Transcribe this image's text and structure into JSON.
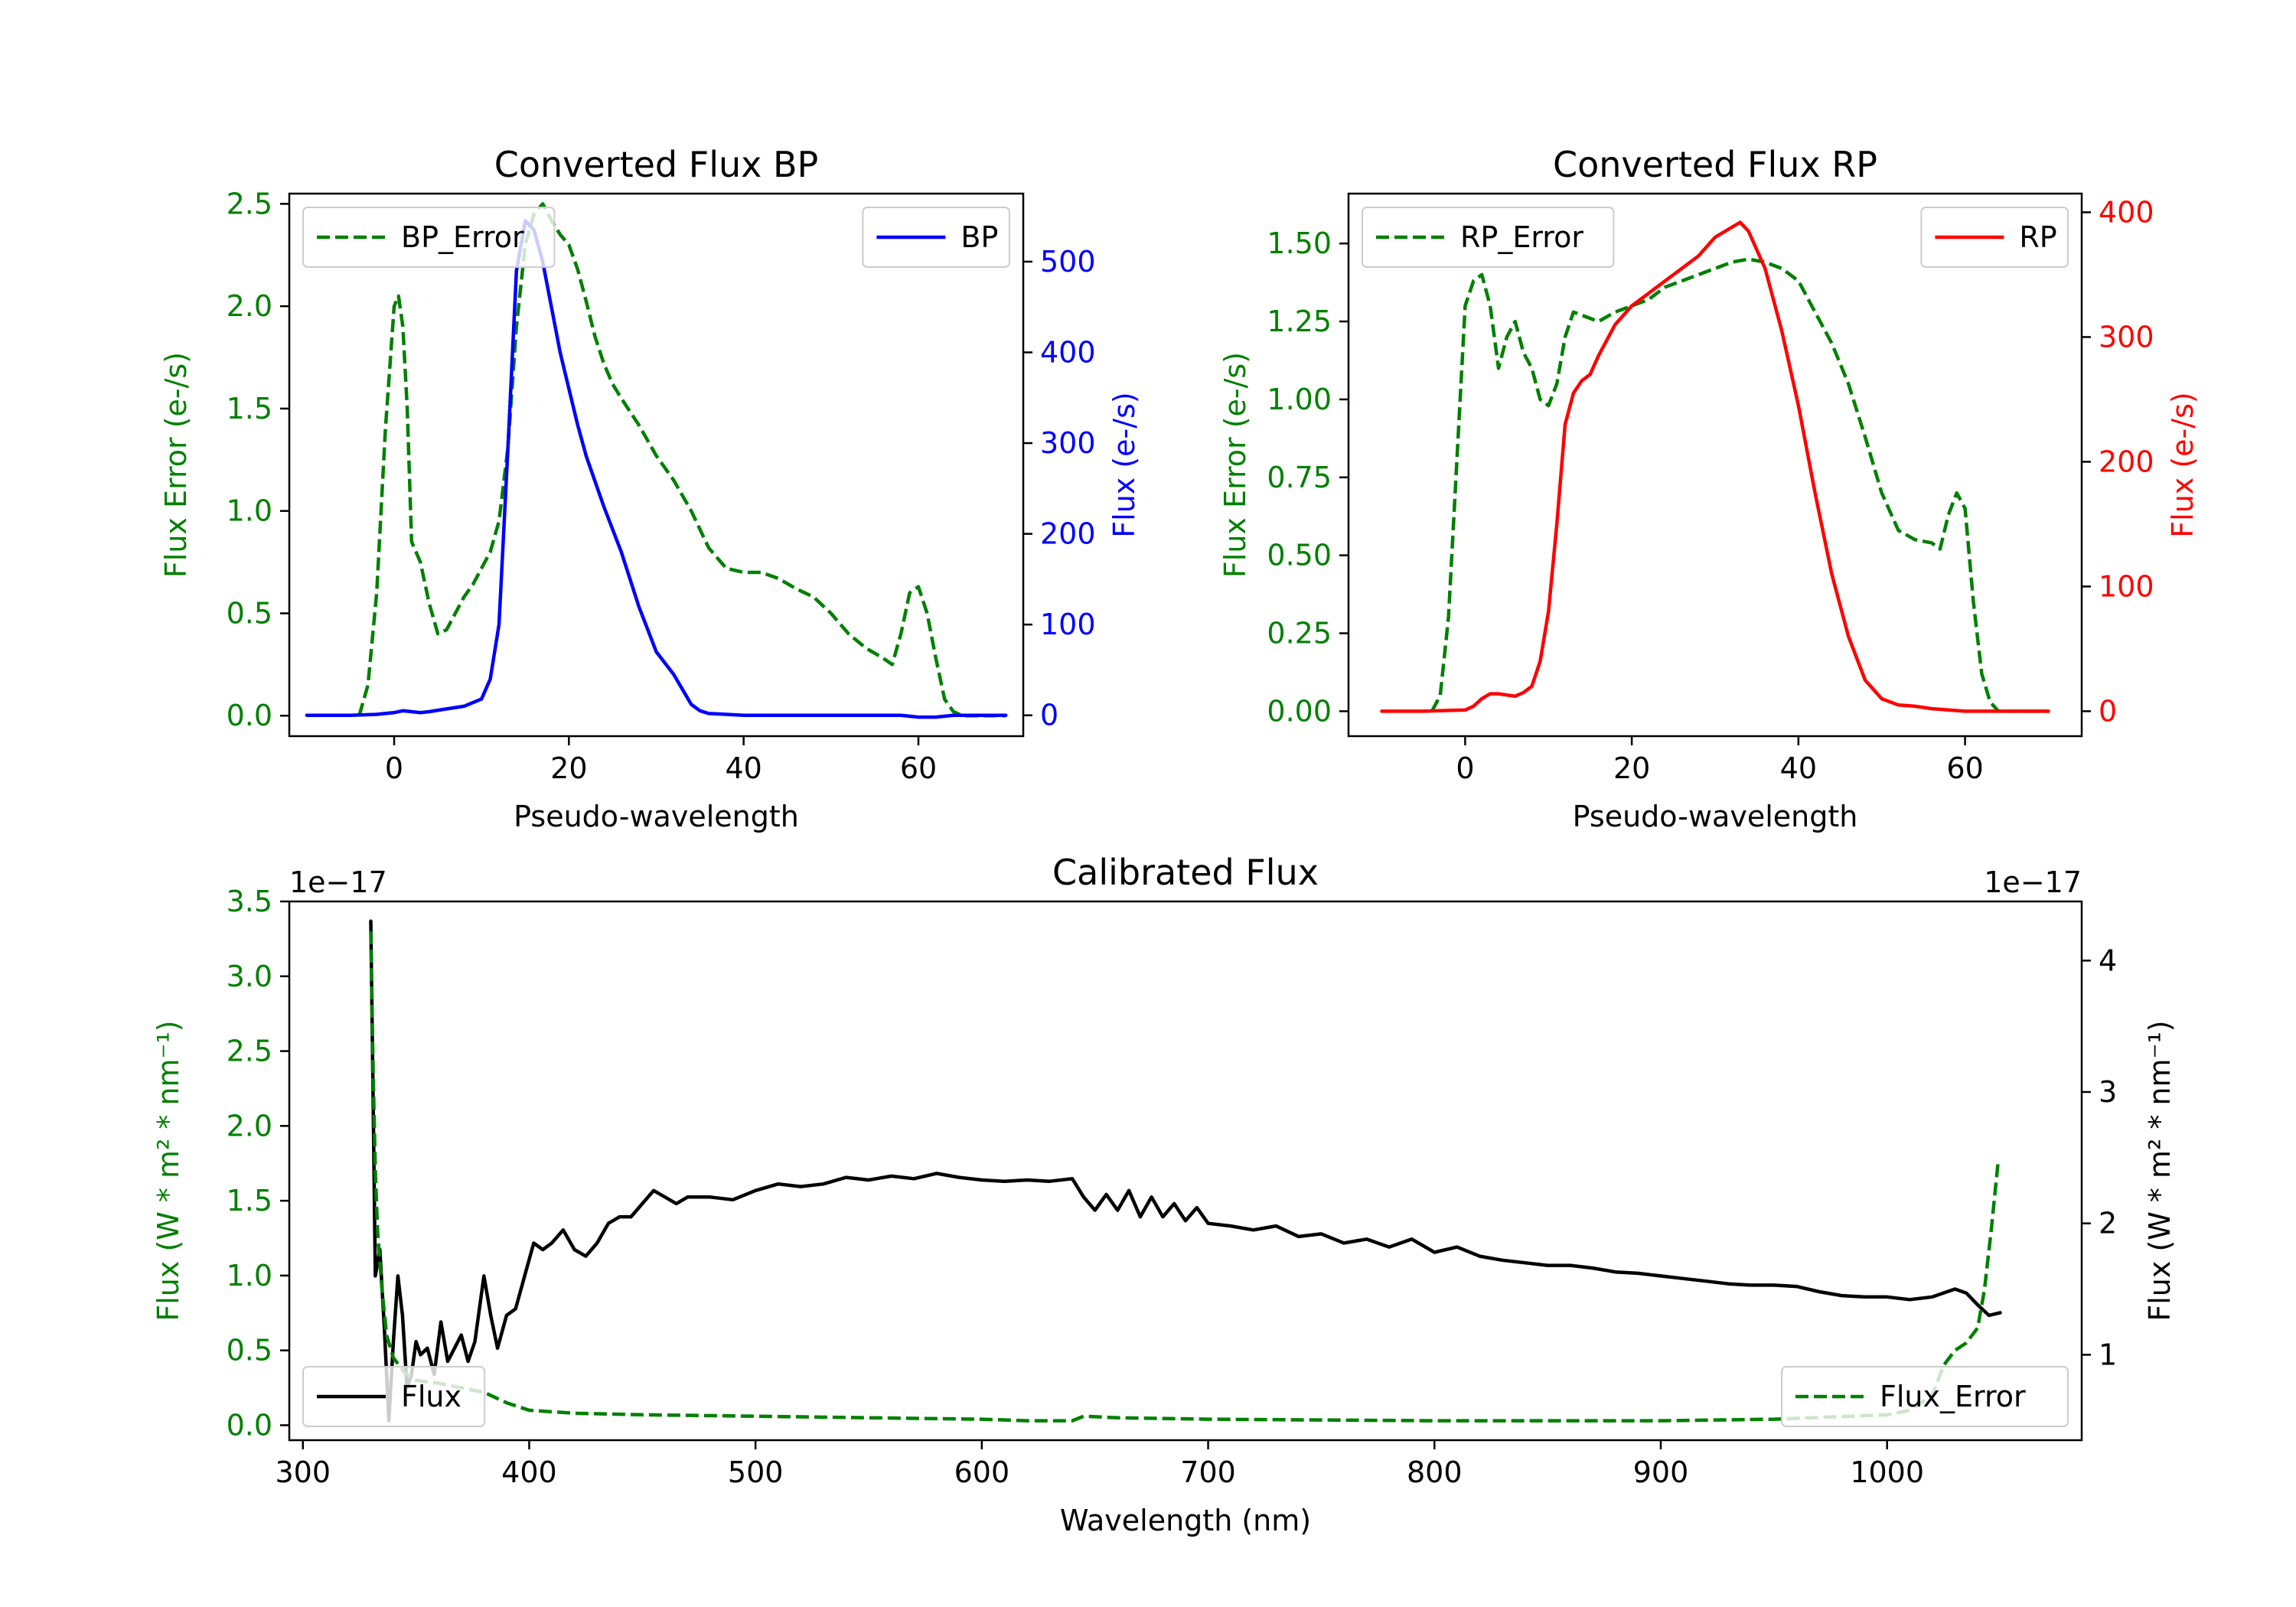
{
  "colors": {
    "error": "#008000",
    "bp": "#0000ff",
    "rp": "#ff0000",
    "flux": "#000000",
    "axis": "#000000",
    "legend_edge": "#cccccc"
  },
  "chart_data": [
    {
      "id": "bp",
      "type": "line",
      "title": "Converted Flux BP",
      "xlabel": "Pseudo-wavelength",
      "ylabel_left": "Flux Error (e-/s)",
      "ylabel_right": "Flux (e-/s)",
      "xlim": [
        -12,
        72
      ],
      "ylim_left": [
        -0.1,
        2.55
      ],
      "ylim_right": [
        -23,
        575
      ],
      "xticks": [
        0,
        20,
        40,
        60
      ],
      "yticks_left": [
        0.0,
        0.5,
        1.0,
        1.5,
        2.0,
        2.5
      ],
      "yticks_left_labels": [
        "0.0",
        "0.5",
        "1.0",
        "1.5",
        "2.0",
        "2.5"
      ],
      "yticks_right": [
        0,
        100,
        200,
        300,
        400,
        500
      ],
      "yticks_right_labels": [
        "0",
        "100",
        "200",
        "300",
        "400",
        "500"
      ],
      "legend_left": {
        "label": "BP_Error",
        "position": "upper left"
      },
      "legend_right": {
        "label": "BP",
        "position": "upper right"
      },
      "series": [
        {
          "name": "BP_Error",
          "axis": "left",
          "style": "dashed",
          "color_key": "error",
          "x": [
            -4,
            -3,
            -2,
            -1,
            0,
            0.5,
            1,
            1.5,
            2,
            3,
            4,
            5,
            6,
            7,
            8,
            9,
            10,
            11,
            12,
            13,
            14,
            15,
            16,
            17,
            18,
            19,
            20,
            21,
            22,
            23,
            24,
            25,
            26,
            28,
            30,
            32,
            34,
            36,
            38,
            40,
            42,
            44,
            46,
            48,
            50,
            52,
            54,
            56,
            57,
            58,
            59,
            60,
            61,
            62,
            63,
            64,
            65,
            66,
            68,
            70
          ],
          "y": [
            0.0,
            0.15,
            0.6,
            1.4,
            2.0,
            2.05,
            1.9,
            1.5,
            0.85,
            0.75,
            0.55,
            0.4,
            0.42,
            0.5,
            0.58,
            0.64,
            0.72,
            0.8,
            0.95,
            1.3,
            1.9,
            2.3,
            2.45,
            2.5,
            2.42,
            2.35,
            2.3,
            2.18,
            2.02,
            1.85,
            1.72,
            1.62,
            1.55,
            1.42,
            1.27,
            1.15,
            1.0,
            0.82,
            0.72,
            0.7,
            0.7,
            0.67,
            0.62,
            0.58,
            0.5,
            0.4,
            0.33,
            0.28,
            0.25,
            0.4,
            0.6,
            0.63,
            0.5,
            0.28,
            0.08,
            0.02,
            0.0,
            0.0,
            0.0,
            0.0
          ]
        },
        {
          "name": "BP",
          "axis": "right",
          "style": "solid",
          "color_key": "bp",
          "x": [
            -10,
            -5,
            -2,
            0,
            1,
            2,
            3,
            4,
            6,
            8,
            10,
            11,
            12,
            13,
            14,
            15,
            16,
            17,
            18,
            19,
            20,
            21,
            22,
            24,
            26,
            28,
            30,
            32,
            34,
            35,
            36,
            38,
            40,
            42,
            44,
            46,
            48,
            50,
            52,
            54,
            56,
            58,
            60,
            62,
            64,
            66,
            68,
            70
          ],
          "y": [
            0,
            0,
            1,
            3,
            5,
            4,
            3,
            4,
            7,
            10,
            18,
            40,
            100,
            290,
            490,
            545,
            535,
            500,
            450,
            400,
            360,
            320,
            285,
            230,
            180,
            120,
            70,
            45,
            12,
            5,
            2,
            1,
            0,
            0,
            0,
            0,
            0,
            0,
            0,
            0,
            0,
            0,
            -2,
            -2,
            0,
            0,
            0,
            0
          ]
        }
      ]
    },
    {
      "id": "rp",
      "type": "line",
      "title": "Converted Flux RP",
      "xlabel": "Pseudo-wavelength",
      "ylabel_left": "Flux Error (e-/s)",
      "ylabel_right": "Flux (e-/s)",
      "xlim": [
        -14,
        74
      ],
      "ylim_left": [
        -0.08,
        1.66
      ],
      "ylim_right": [
        -20,
        415
      ],
      "xticks": [
        0,
        20,
        40,
        60
      ],
      "yticks_left": [
        0.0,
        0.25,
        0.5,
        0.75,
        1.0,
        1.25,
        1.5
      ],
      "yticks_left_labels": [
        "0.00",
        "0.25",
        "0.50",
        "0.75",
        "1.00",
        "1.25",
        "1.50"
      ],
      "yticks_right": [
        0,
        100,
        200,
        300,
        400
      ],
      "yticks_right_labels": [
        "0",
        "100",
        "200",
        "300",
        "400"
      ],
      "legend_left": {
        "label": "RP_Error",
        "position": "upper left"
      },
      "legend_right": {
        "label": "RP",
        "position": "upper right"
      },
      "series": [
        {
          "name": "RP_Error",
          "axis": "left",
          "style": "dashed",
          "color_key": "error",
          "x": [
            -4,
            -3,
            -2,
            -1,
            0,
            1,
            2,
            3,
            4,
            5,
            6,
            7,
            8,
            9,
            10,
            11,
            12,
            13,
            14,
            16,
            18,
            20,
            22,
            24,
            26,
            28,
            30,
            32,
            34,
            36,
            38,
            40,
            42,
            44,
            46,
            48,
            50,
            52,
            54,
            56,
            57,
            58,
            59,
            60,
            61,
            62,
            63,
            64,
            66,
            68,
            70
          ],
          "y": [
            0.0,
            0.05,
            0.3,
            0.8,
            1.3,
            1.38,
            1.4,
            1.3,
            1.1,
            1.2,
            1.25,
            1.15,
            1.1,
            1.0,
            0.98,
            1.05,
            1.2,
            1.28,
            1.27,
            1.25,
            1.28,
            1.3,
            1.32,
            1.36,
            1.38,
            1.4,
            1.42,
            1.44,
            1.45,
            1.44,
            1.42,
            1.38,
            1.28,
            1.18,
            1.05,
            0.88,
            0.7,
            0.58,
            0.55,
            0.54,
            0.52,
            0.63,
            0.7,
            0.65,
            0.35,
            0.12,
            0.03,
            0.0,
            0.0,
            0.0,
            0.0
          ]
        },
        {
          "name": "RP",
          "axis": "right",
          "style": "solid",
          "color_key": "rp",
          "x": [
            -10,
            -5,
            0,
            1,
            2,
            3,
            4,
            6,
            7,
            8,
            9,
            10,
            11,
            12,
            13,
            14,
            15,
            16,
            18,
            20,
            22,
            24,
            26,
            28,
            30,
            32,
            33,
            34,
            36,
            38,
            40,
            42,
            44,
            46,
            48,
            50,
            52,
            54,
            56,
            58,
            60,
            62,
            64,
            66,
            68,
            70
          ],
          "y": [
            0,
            0,
            1,
            4,
            10,
            14,
            14,
            12,
            15,
            20,
            40,
            80,
            150,
            230,
            255,
            265,
            270,
            285,
            310,
            325,
            335,
            345,
            355,
            365,
            380,
            388,
            392,
            385,
            355,
            305,
            245,
            175,
            110,
            60,
            25,
            10,
            5,
            4,
            2,
            1,
            0,
            0,
            0,
            0,
            0,
            0
          ]
        }
      ]
    },
    {
      "id": "calibrated",
      "type": "line",
      "title": "Calibrated Flux",
      "xlabel": "Wavelength (nm)",
      "ylabel_left": "Flux (W * m² * nm⁻¹)",
      "ylabel_right": "Flux (W * m² * nm⁻¹)",
      "offset_left": "1e−17",
      "offset_right": "1e−17",
      "xlim": [
        294,
        1086
      ],
      "ylim_left": [
        -0.1,
        3.5
      ],
      "ylim_right": [
        0.35,
        4.45
      ],
      "xticks": [
        300,
        400,
        500,
        600,
        700,
        800,
        900,
        1000
      ],
      "yticks_left": [
        0.0,
        0.5,
        1.0,
        1.5,
        2.0,
        2.5,
        3.0,
        3.5
      ],
      "yticks_left_labels": [
        "0.0",
        "0.5",
        "1.0",
        "1.5",
        "2.0",
        "2.5",
        "3.0",
        "3.5"
      ],
      "yticks_right": [
        1,
        2,
        3,
        4
      ],
      "yticks_right_labels": [
        "1",
        "2",
        "3",
        "4"
      ],
      "legend_left": {
        "label": "Flux",
        "position": "lower left"
      },
      "legend_right": {
        "label": "Flux_Error",
        "position": "lower right"
      },
      "series": [
        {
          "name": "Flux",
          "axis": "right",
          "style": "solid",
          "color_key": "flux",
          "x": [
            330,
            331,
            332,
            334,
            336,
            338,
            340,
            342,
            344,
            346,
            348,
            350,
            352,
            355,
            358,
            361,
            364,
            367,
            370,
            373,
            376,
            380,
            383,
            386,
            390,
            394,
            398,
            402,
            406,
            410,
            415,
            420,
            425,
            430,
            435,
            440,
            445,
            450,
            455,
            460,
            465,
            470,
            475,
            480,
            490,
            500,
            510,
            520,
            530,
            540,
            550,
            560,
            570,
            580,
            590,
            600,
            610,
            620,
            630,
            640,
            645,
            650,
            655,
            660,
            665,
            670,
            675,
            680,
            685,
            690,
            695,
            700,
            710,
            720,
            730,
            740,
            750,
            760,
            770,
            780,
            790,
            800,
            810,
            820,
            830,
            840,
            850,
            860,
            870,
            880,
            890,
            900,
            910,
            920,
            930,
            940,
            950,
            960,
            970,
            980,
            990,
            1000,
            1010,
            1020,
            1030,
            1035,
            1040,
            1045,
            1050
          ],
          "y": [
            4.3,
            3.0,
            1.6,
            1.8,
            1.2,
            0.5,
            1.1,
            1.6,
            1.3,
            0.75,
            0.85,
            1.1,
            1.0,
            1.05,
            0.85,
            1.25,
            0.95,
            1.05,
            1.15,
            0.95,
            1.1,
            1.6,
            1.3,
            1.05,
            1.3,
            1.35,
            1.6,
            1.85,
            1.8,
            1.85,
            1.95,
            1.8,
            1.75,
            1.85,
            2.0,
            2.05,
            2.05,
            2.15,
            2.25,
            2.2,
            2.15,
            2.2,
            2.2,
            2.2,
            2.18,
            2.25,
            2.3,
            2.28,
            2.3,
            2.35,
            2.33,
            2.36,
            2.34,
            2.38,
            2.35,
            2.33,
            2.32,
            2.33,
            2.32,
            2.34,
            2.2,
            2.1,
            2.22,
            2.1,
            2.25,
            2.05,
            2.2,
            2.05,
            2.15,
            2.02,
            2.12,
            2.0,
            1.98,
            1.95,
            1.98,
            1.9,
            1.92,
            1.85,
            1.88,
            1.82,
            1.88,
            1.78,
            1.82,
            1.75,
            1.72,
            1.7,
            1.68,
            1.68,
            1.66,
            1.63,
            1.62,
            1.6,
            1.58,
            1.56,
            1.54,
            1.53,
            1.53,
            1.52,
            1.48,
            1.45,
            1.44,
            1.44,
            1.42,
            1.44,
            1.5,
            1.47,
            1.38,
            1.3,
            1.32
          ]
        },
        {
          "name": "Flux_Error",
          "axis": "left",
          "style": "dashed",
          "color_key": "error",
          "x": [
            330,
            331,
            332,
            333,
            335,
            337,
            340,
            345,
            350,
            360,
            370,
            380,
            390,
            400,
            420,
            450,
            500,
            550,
            600,
            620,
            640,
            645,
            660,
            700,
            750,
            800,
            850,
            900,
            950,
            1000,
            1010,
            1020,
            1025,
            1030,
            1035,
            1040,
            1043,
            1046,
            1049
          ],
          "y": [
            3.3,
            2.4,
            1.7,
            1.3,
            0.9,
            0.6,
            0.45,
            0.35,
            0.3,
            0.28,
            0.25,
            0.22,
            0.15,
            0.1,
            0.08,
            0.07,
            0.06,
            0.05,
            0.04,
            0.03,
            0.03,
            0.06,
            0.05,
            0.04,
            0.035,
            0.03,
            0.03,
            0.03,
            0.04,
            0.07,
            0.1,
            0.2,
            0.4,
            0.5,
            0.55,
            0.65,
            0.9,
            1.3,
            1.75
          ]
        }
      ]
    }
  ]
}
